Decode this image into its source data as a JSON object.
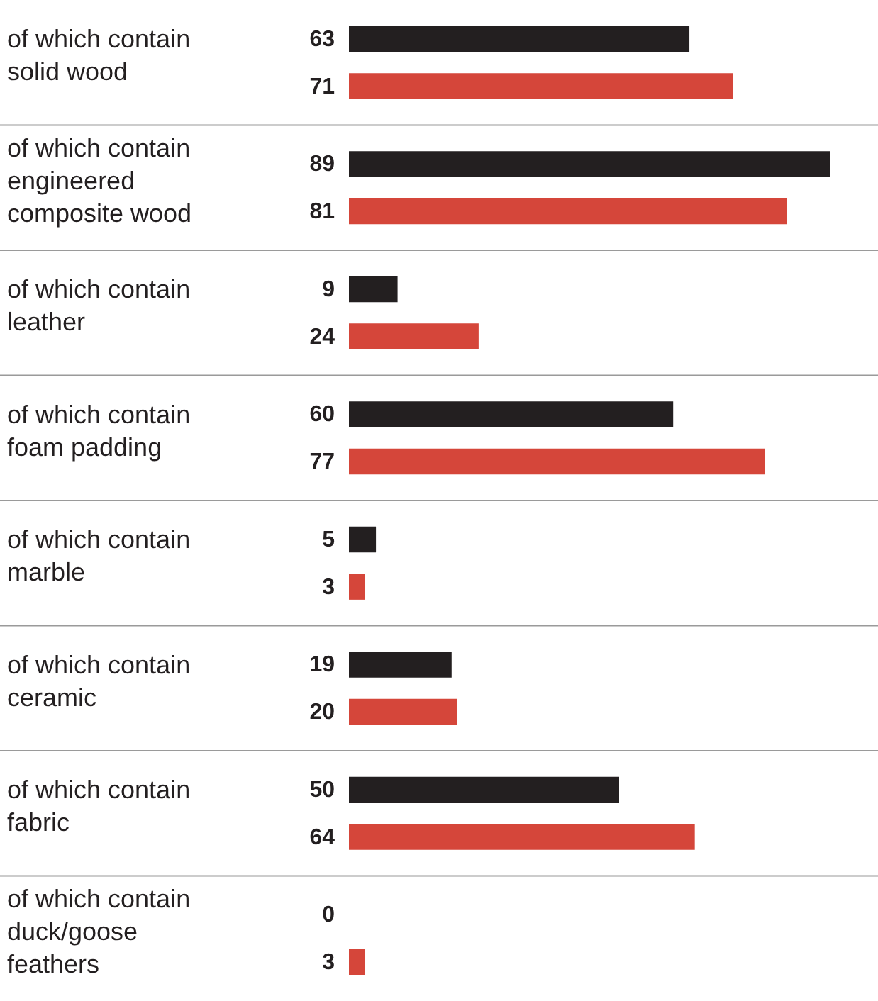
{
  "chart_data": {
    "type": "bar",
    "orientation": "horizontal",
    "categories": [
      "of which contain\nsolid wood",
      "of which contain\nengineered\ncomposite wood",
      "of which contain\nleather",
      "of which contain\nfoam padding",
      "of which contain\nmarble",
      "of which contain\nceramic",
      "of which contain\nfabric",
      "of which contain\nduck/goose\nfeathers"
    ],
    "series": [
      {
        "color": "#231f20",
        "values": [
          63,
          89,
          9,
          60,
          5,
          19,
          50,
          0
        ]
      },
      {
        "color": "#d5463a",
        "values": [
          71,
          81,
          24,
          77,
          3,
          20,
          64,
          3
        ]
      }
    ],
    "data_labels": true,
    "grid": true
  }
}
